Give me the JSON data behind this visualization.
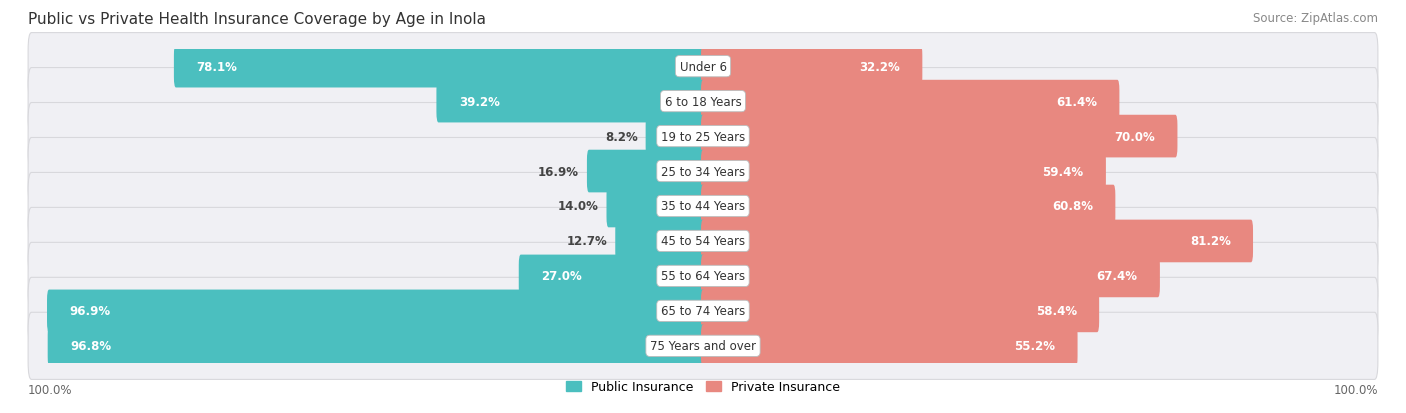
{
  "title": "Public vs Private Health Insurance Coverage by Age in Inola",
  "source": "Source: ZipAtlas.com",
  "categories": [
    "Under 6",
    "6 to 18 Years",
    "19 to 25 Years",
    "25 to 34 Years",
    "35 to 44 Years",
    "45 to 54 Years",
    "55 to 64 Years",
    "65 to 74 Years",
    "75 Years and over"
  ],
  "public_values": [
    78.1,
    39.2,
    8.2,
    16.9,
    14.0,
    12.7,
    27.0,
    96.9,
    96.8
  ],
  "private_values": [
    32.2,
    61.4,
    70.0,
    59.4,
    60.8,
    81.2,
    67.4,
    58.4,
    55.2
  ],
  "public_color": "#4BBFBF",
  "private_color": "#E88880",
  "row_bg_color": "#E8E8EC",
  "title_fontsize": 11,
  "source_fontsize": 8.5,
  "bar_label_fontsize": 8.5,
  "cat_label_fontsize": 8.5,
  "legend_fontsize": 9,
  "max_value": 100.0,
  "figsize": [
    14.06,
    4.14
  ],
  "dpi": 100
}
